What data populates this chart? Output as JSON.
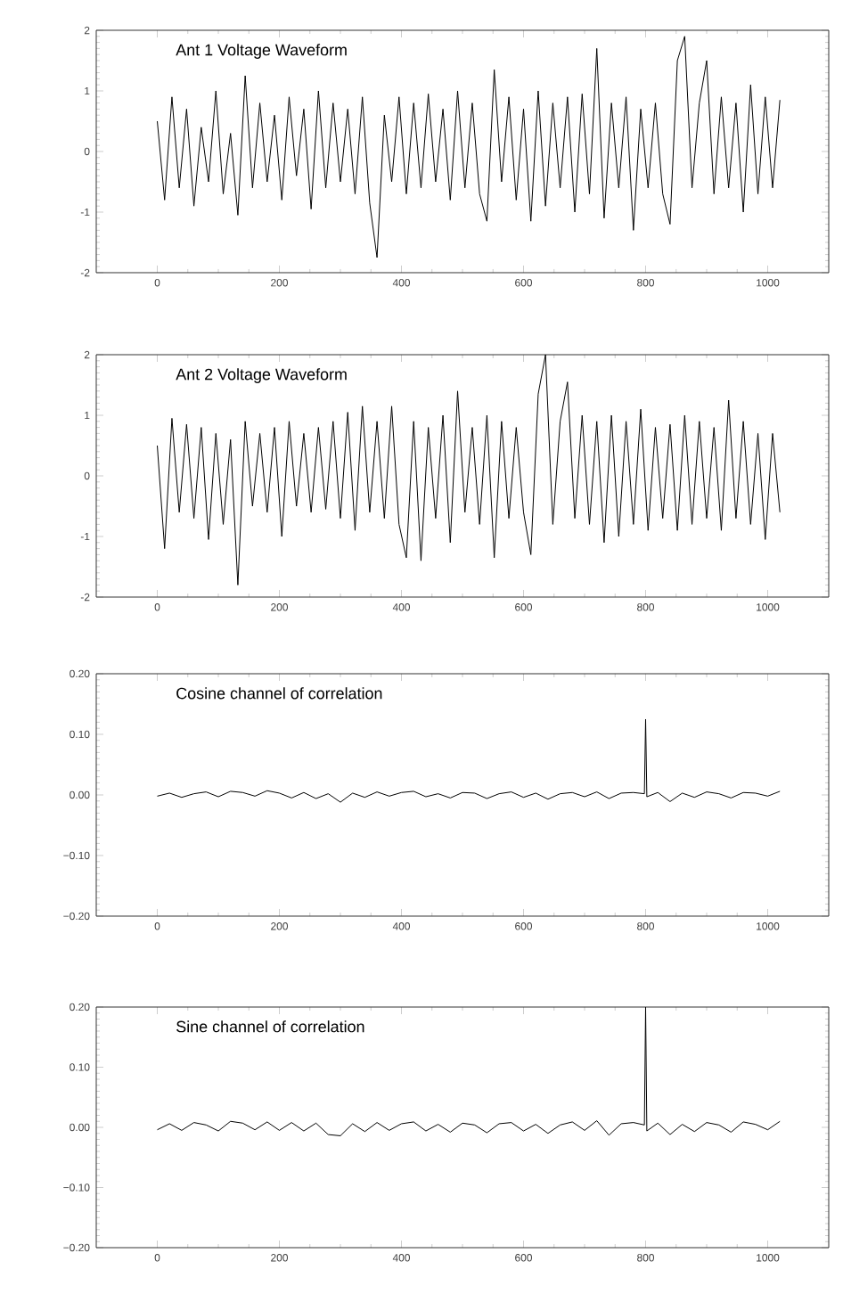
{
  "chart_data": [
    {
      "type": "line",
      "title": "Ant 1 Voltage Waveform",
      "color": "#000000",
      "xlim": [
        -100,
        1100
      ],
      "ylim": [
        -2,
        2
      ],
      "xticks": [
        0,
        200,
        400,
        600,
        800,
        1000
      ],
      "yticks": [
        -2,
        -1,
        0,
        1,
        2
      ],
      "x": [
        0,
        12,
        24,
        36,
        48,
        60,
        72,
        84,
        96,
        108,
        120,
        132,
        144,
        156,
        168,
        180,
        192,
        204,
        216,
        228,
        240,
        252,
        264,
        276,
        288,
        300,
        312,
        324,
        336,
        348,
        360,
        372,
        384,
        396,
        408,
        420,
        432,
        444,
        456,
        468,
        480,
        492,
        504,
        516,
        528,
        540,
        552,
        564,
        576,
        588,
        600,
        612,
        624,
        636,
        648,
        660,
        672,
        684,
        696,
        708,
        720,
        732,
        744,
        756,
        768,
        780,
        792,
        804,
        816,
        828,
        840,
        852,
        864,
        876,
        888,
        900,
        912,
        924,
        936,
        948,
        960,
        972,
        984,
        996,
        1008,
        1020
      ],
      "values": [
        0.5,
        -0.8,
        0.9,
        -0.6,
        0.7,
        -0.9,
        0.4,
        -0.5,
        1.0,
        -0.7,
        0.3,
        -1.05,
        1.25,
        -0.6,
        0.8,
        -0.5,
        0.6,
        -0.8,
        0.9,
        -0.4,
        0.7,
        -0.95,
        1.0,
        -0.6,
        0.8,
        -0.5,
        0.7,
        -0.7,
        0.9,
        -0.85,
        -1.75,
        0.6,
        -0.5,
        0.9,
        -0.7,
        0.8,
        -0.6,
        0.95,
        -0.5,
        0.7,
        -0.8,
        1.0,
        -0.6,
        0.8,
        -0.7,
        -1.15,
        1.35,
        -0.5,
        0.9,
        -0.8,
        0.7,
        -1.15,
        1.0,
        -0.9,
        0.8,
        -0.6,
        0.9,
        -1.0,
        0.95,
        -0.7,
        1.7,
        -1.1,
        0.8,
        -0.6,
        0.9,
        -1.3,
        0.7,
        -0.6,
        0.8,
        -0.7,
        -1.2,
        1.5,
        1.9,
        -0.6,
        0.8,
        1.5,
        -0.7,
        0.9,
        -0.6,
        0.8,
        -1.0,
        1.1,
        -0.7,
        0.9,
        -0.6,
        0.85
      ]
    },
    {
      "type": "line",
      "title": "Ant 2 Voltage Waveform",
      "color": "#000000",
      "xlim": [
        -100,
        1100
      ],
      "ylim": [
        -2,
        2
      ],
      "xticks": [
        0,
        200,
        400,
        600,
        800,
        1000
      ],
      "yticks": [
        -2,
        -1,
        0,
        1,
        2
      ],
      "x": [
        0,
        12,
        24,
        36,
        48,
        60,
        72,
        84,
        96,
        108,
        120,
        132,
        144,
        156,
        168,
        180,
        192,
        204,
        216,
        228,
        240,
        252,
        264,
        276,
        288,
        300,
        312,
        324,
        336,
        348,
        360,
        372,
        384,
        396,
        408,
        420,
        432,
        444,
        456,
        468,
        480,
        492,
        504,
        516,
        528,
        540,
        552,
        564,
        576,
        588,
        600,
        612,
        624,
        636,
        648,
        660,
        672,
        684,
        696,
        708,
        720,
        732,
        744,
        756,
        768,
        780,
        792,
        804,
        816,
        828,
        840,
        852,
        864,
        876,
        888,
        900,
        912,
        924,
        936,
        948,
        960,
        972,
        984,
        996,
        1008,
        1020
      ],
      "values": [
        0.5,
        -1.2,
        0.95,
        -0.6,
        0.85,
        -0.7,
        0.8,
        -1.05,
        0.7,
        -0.8,
        0.6,
        -1.8,
        0.9,
        -0.5,
        0.7,
        -0.6,
        0.8,
        -1.0,
        0.9,
        -0.5,
        0.7,
        -0.6,
        0.8,
        -0.55,
        0.9,
        -0.7,
        1.05,
        -0.9,
        1.15,
        -0.6,
        0.9,
        -0.7,
        1.15,
        -0.8,
        -1.35,
        0.9,
        -1.4,
        0.8,
        -0.7,
        1.0,
        -1.1,
        1.4,
        -0.6,
        0.8,
        -0.8,
        1.0,
        -1.35,
        0.9,
        -0.7,
        0.8,
        -0.6,
        -1.3,
        1.35,
        2.0,
        -0.8,
        0.9,
        1.55,
        -0.7,
        1.0,
        -0.8,
        0.9,
        -1.1,
        1.0,
        -1.0,
        0.9,
        -0.8,
        1.1,
        -0.9,
        0.8,
        -0.7,
        0.85,
        -0.9,
        1.0,
        -0.8,
        0.9,
        -0.7,
        0.8,
        -0.9,
        1.25,
        -0.7,
        0.9,
        -0.8,
        0.7,
        -1.05,
        0.7,
        -0.6
      ]
    },
    {
      "type": "line",
      "title": "Cosine channel of correlation",
      "color": "#000000",
      "xlim": [
        -100,
        1100
      ],
      "ylim": [
        -0.2,
        0.2
      ],
      "xticks": [
        0,
        200,
        400,
        600,
        800,
        1000
      ],
      "yticks": [
        {
          "value": -0.2,
          "label": "−0.20"
        },
        {
          "value": -0.1,
          "label": "−0.10"
        },
        {
          "value": 0,
          "label": "0.00"
        },
        {
          "value": 0.1,
          "label": "0.10"
        },
        {
          "value": 0.2,
          "label": "0.20"
        }
      ],
      "x": [
        0,
        20,
        40,
        60,
        80,
        100,
        120,
        140,
        160,
        180,
        200,
        220,
        240,
        260,
        280,
        300,
        320,
        340,
        360,
        380,
        400,
        420,
        440,
        460,
        480,
        500,
        520,
        540,
        560,
        580,
        600,
        620,
        640,
        660,
        680,
        700,
        720,
        740,
        760,
        780,
        798,
        800,
        802,
        820,
        840,
        860,
        880,
        900,
        920,
        940,
        960,
        980,
        1000,
        1020
      ],
      "values": [
        -0.002,
        0.003,
        -0.004,
        0.002,
        0.005,
        -0.003,
        0.006,
        0.004,
        -0.002,
        0.007,
        0.003,
        -0.005,
        0.004,
        -0.006,
        0.002,
        -0.012,
        0.003,
        -0.004,
        0.005,
        -0.002,
        0.004,
        0.006,
        -0.003,
        0.002,
        -0.005,
        0.004,
        0.003,
        -0.006,
        0.002,
        0.005,
        -0.004,
        0.003,
        -0.007,
        0.002,
        0.004,
        -0.003,
        0.005,
        -0.006,
        0.003,
        0.004,
        0.002,
        0.125,
        -0.003,
        0.004,
        -0.011,
        0.003,
        -0.004,
        0.005,
        0.002,
        -0.005,
        0.004,
        0.003,
        -0.002,
        0.006
      ]
    },
    {
      "type": "line",
      "title": "Sine channel of correlation",
      "color": "#000000",
      "xlim": [
        -100,
        1100
      ],
      "ylim": [
        -0.2,
        0.2
      ],
      "xticks": [
        0,
        200,
        400,
        600,
        800,
        1000
      ],
      "yticks": [
        {
          "value": -0.2,
          "label": "−0.20"
        },
        {
          "value": -0.1,
          "label": "−0.10"
        },
        {
          "value": 0,
          "label": "0.00"
        },
        {
          "value": 0.1,
          "label": "0.10"
        },
        {
          "value": 0.2,
          "label": "0.20"
        }
      ],
      "x": [
        0,
        20,
        40,
        60,
        80,
        100,
        120,
        140,
        160,
        180,
        200,
        220,
        240,
        260,
        280,
        300,
        320,
        340,
        360,
        380,
        400,
        420,
        440,
        460,
        480,
        500,
        520,
        540,
        560,
        580,
        600,
        620,
        640,
        660,
        680,
        700,
        720,
        740,
        760,
        780,
        798,
        800,
        802,
        820,
        840,
        860,
        880,
        900,
        920,
        940,
        960,
        980,
        1000,
        1020
      ],
      "values": [
        -0.004,
        0.006,
        -0.005,
        0.008,
        0.004,
        -0.006,
        0.01,
        0.007,
        -0.004,
        0.009,
        -0.005,
        0.008,
        -0.006,
        0.007,
        -0.012,
        -0.014,
        0.006,
        -0.007,
        0.008,
        -0.005,
        0.006,
        0.009,
        -0.006,
        0.005,
        -0.008,
        0.007,
        0.004,
        -0.009,
        0.006,
        0.008,
        -0.006,
        0.005,
        -0.01,
        0.004,
        0.009,
        -0.005,
        0.011,
        -0.013,
        0.006,
        0.008,
        0.004,
        0.2,
        -0.006,
        0.007,
        -0.012,
        0.005,
        -0.007,
        0.008,
        0.004,
        -0.008,
        0.009,
        0.005,
        -0.004,
        0.01
      ]
    }
  ]
}
